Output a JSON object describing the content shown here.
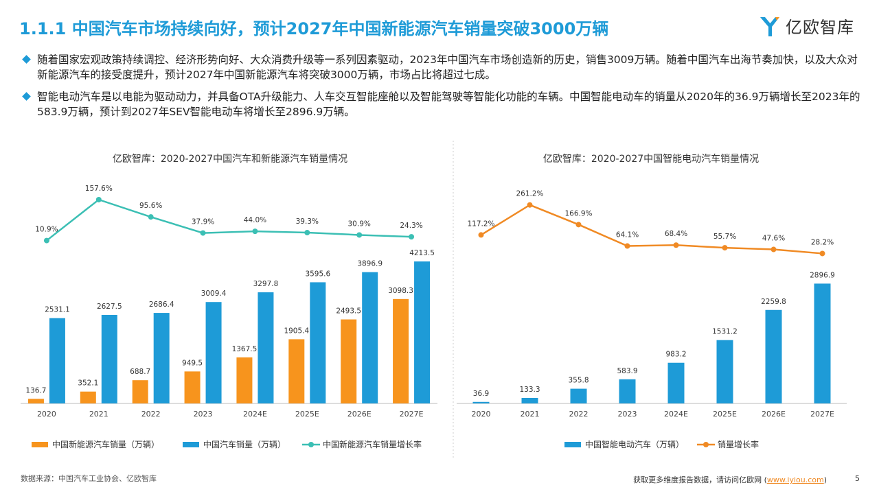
{
  "header": {
    "title": "1.1.1 中国汽车市场持续向好，预计2027年中国新能源汽车销量突破3000万辆",
    "logo": "亿欧智库"
  },
  "bullets": [
    "随着国家宏观政策持续调控、经济形势向好、大众消费升级等一系列因素驱动，2023年中国汽车市场创造新的历史，销售3009万辆。随着中国汽车出海节奏加快，以及大众对新能源汽车的接受度提升，预计2027年中国新能源汽车将突破3000万辆，市场占比将超过七成。",
    "智能电动汽车是以电能为驱动动力，并具备OTA升级能力、人车交互智能座舱以及智能驾驶等智能化功能的车辆。中国智能电动车的销量从2020年的36.9万辆增长至2023年的583.9万辆，预计到2027年SEV智能电动车将增长至2896.9万辆。"
  ],
  "chart_data": [
    {
      "type": "bar",
      "title": "亿欧智库：2020-2027中国汽车和新能源汽车销量情况",
      "categories": [
        "2020",
        "2021",
        "2022",
        "2023",
        "2024E",
        "2025E",
        "2026E",
        "2027E"
      ],
      "ylim": [
        0,
        4500
      ],
      "y2lim": [
        0,
        160
      ],
      "series": [
        {
          "name": "中国新能源汽车销量（万辆）",
          "color": "#F7941D",
          "values": [
            136.7,
            352.1,
            688.7,
            949.5,
            1367.5,
            1905.4,
            2493.5,
            3098.3
          ]
        },
        {
          "name": "中国汽车销量（万辆）",
          "color": "#1E9BD7",
          "values": [
            2531.1,
            2627.5,
            2686.4,
            3009.4,
            3297.8,
            3595.6,
            3896.9,
            4213.5
          ]
        },
        {
          "name": "中国新能源汽车销量增长率",
          "color": "#3BBFB4",
          "type": "line",
          "axis": "y2",
          "values": [
            10.9,
            157.6,
            95.6,
            37.9,
            44,
            39.3,
            30.9,
            24.3
          ],
          "value_labels": [
            "10.9%",
            "157.6%",
            "95.6%",
            "37.9%",
            "44.0%",
            "39.3%",
            "30.9%",
            "24.3%"
          ]
        }
      ]
    },
    {
      "type": "bar",
      "title": "亿欧智库：2020-2027中国智能电动汽车销量情况",
      "categories": [
        "2020",
        "2021",
        "2022",
        "2023",
        "2024E",
        "2025E",
        "2026E",
        "2027E"
      ],
      "ylim": [
        0,
        3500
      ],
      "y2lim": [
        0,
        280
      ],
      "series": [
        {
          "name": "中国智能电动汽车（万辆）",
          "color": "#1E9BD7",
          "values": [
            36.9,
            133.3,
            355.8,
            583.9,
            983.2,
            1531.2,
            2259.8,
            2896.9
          ]
        },
        {
          "name": "销量增长率",
          "color": "#F08A24",
          "type": "line",
          "axis": "y2",
          "values": [
            117.2,
            261.2,
            166.9,
            64.1,
            68.4,
            55.7,
            47.6,
            28.2
          ],
          "value_labels": [
            "117.2%",
            "261.2%",
            "166.9%",
            "64.1%",
            "68.4%",
            "55.7%",
            "47.6%",
            "28.2%"
          ]
        }
      ]
    }
  ],
  "footer": {
    "source": "数据来源：中国汽车工业协会、亿欧智库",
    "cta_prefix": "获取更多维度报告数据，请访问亿欧网 (",
    "link": "www.iyiou.com",
    "cta_suffix": ")",
    "page": "5"
  }
}
